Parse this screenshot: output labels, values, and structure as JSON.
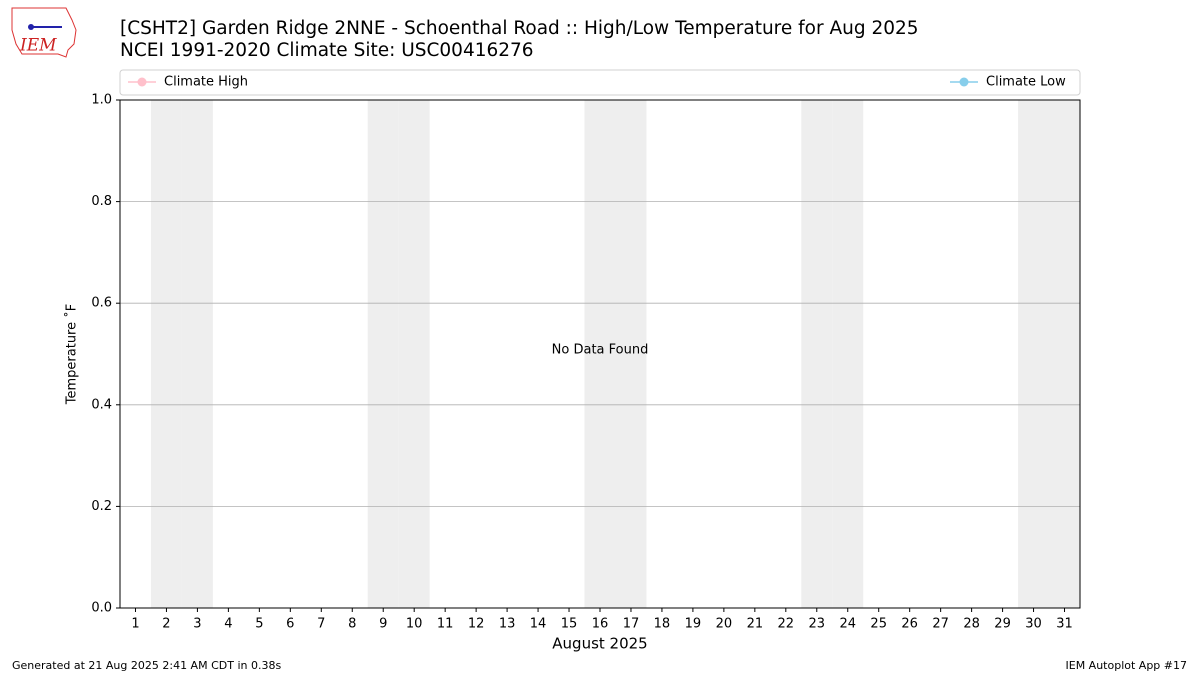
{
  "logo_text": "IEM",
  "chart_data": {
    "type": "line",
    "title": "[CSHT2] Garden Ridge 2NNE - Schoenthal Road :: High/Low Temperature for Aug 2025",
    "subtitle": "NCEI 1991-2020 Climate Site: USC00416276",
    "x_label": "August 2025",
    "y_label": "Temperature ˚F",
    "annotation": "No Data Found",
    "x": [
      1,
      2,
      3,
      4,
      5,
      6,
      7,
      8,
      9,
      10,
      11,
      12,
      13,
      14,
      15,
      16,
      17,
      18,
      19,
      20,
      21,
      22,
      23,
      24,
      25,
      26,
      27,
      28,
      29,
      30,
      31
    ],
    "series": [
      {
        "name": "Climate High",
        "color": "#ffc0cb",
        "values": [
          null,
          null,
          null,
          null,
          null,
          null,
          null,
          null,
          null,
          null,
          null,
          null,
          null,
          null,
          null,
          null,
          null,
          null,
          null,
          null,
          null,
          null,
          null,
          null,
          null,
          null,
          null,
          null,
          null,
          null,
          null
        ]
      },
      {
        "name": "Climate Low",
        "color": "#87ceeb",
        "values": [
          null,
          null,
          null,
          null,
          null,
          null,
          null,
          null,
          null,
          null,
          null,
          null,
          null,
          null,
          null,
          null,
          null,
          null,
          null,
          null,
          null,
          null,
          null,
          null,
          null,
          null,
          null,
          null,
          null,
          null,
          null
        ]
      }
    ],
    "shaded_x": [
      2,
      3,
      9,
      10,
      16,
      17,
      23,
      24,
      30,
      31
    ],
    "xlim": [
      0.5,
      31.5
    ],
    "xticks": [
      1,
      2,
      3,
      4,
      5,
      6,
      7,
      8,
      9,
      10,
      11,
      12,
      13,
      14,
      15,
      16,
      17,
      18,
      19,
      20,
      21,
      22,
      23,
      24,
      25,
      26,
      27,
      28,
      29,
      30,
      31
    ],
    "ylim": [
      0,
      1
    ],
    "yticks": [
      {
        "value": 0,
        "label": "0.0"
      },
      0.2,
      0.4,
      0.6,
      0.8,
      {
        "value": 1,
        "label": "1.0"
      }
    ],
    "grid": true,
    "legend": "top",
    "footer_left": "Generated at 21 Aug 2025 2:41 AM CDT in 0.38s",
    "footer_right": "IEM Autoplot App #17"
  }
}
